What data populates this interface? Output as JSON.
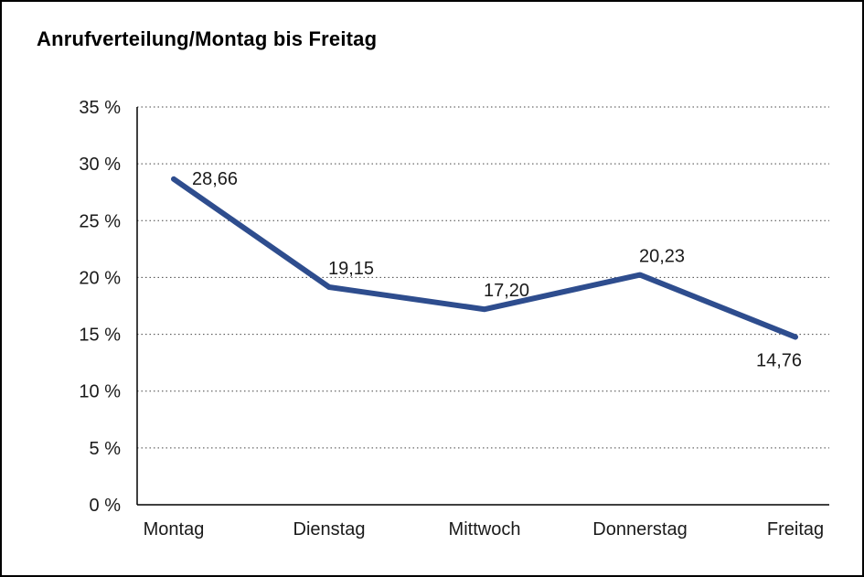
{
  "title": "Anrufverteilung/Montag bis Freitag",
  "chart_data": {
    "type": "line",
    "title": "Anrufverteilung/Montag bis Freitag",
    "categories": [
      "Montag",
      "Dienstag",
      "Mittwoch",
      "Donnerstag",
      "Freitag"
    ],
    "values": [
      28.66,
      19.15,
      17.2,
      20.23,
      14.76
    ],
    "value_labels": [
      "28,66",
      "19,15",
      "17,20",
      "20,23",
      "14,76"
    ],
    "label_positions": [
      "right",
      "above",
      "above",
      "above",
      "below"
    ],
    "xlabel": "",
    "ylabel": "",
    "ylim": [
      0,
      35
    ],
    "ytick_step": 5,
    "ytick_suffix": " %",
    "grid": "horizontal-dotted",
    "legend": "none",
    "line_color": "#2e4d8e",
    "axis_color": "#000000",
    "grid_color": "#444444"
  }
}
